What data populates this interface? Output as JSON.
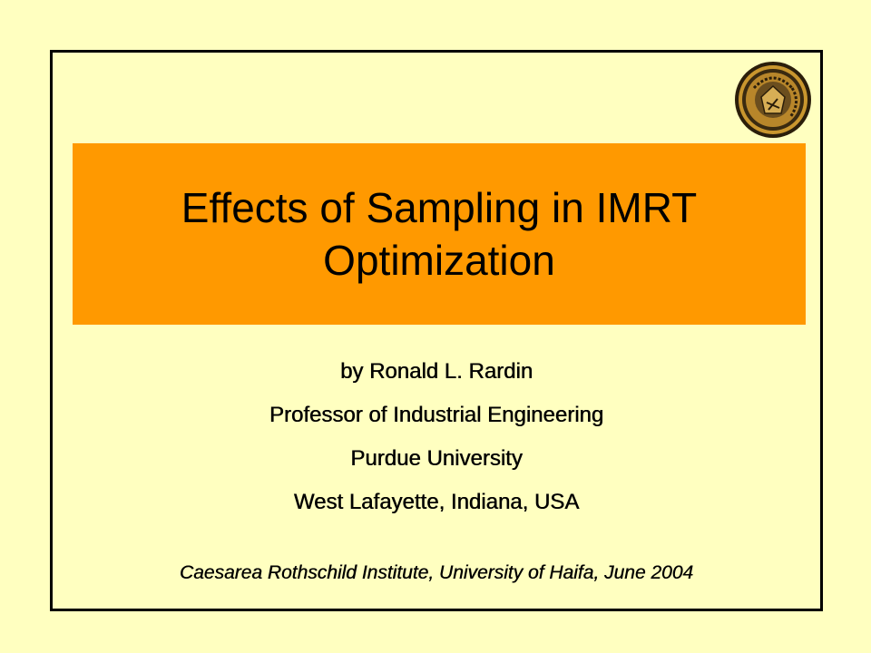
{
  "slide": {
    "title": "Effects of Sampling in IMRT Optimization",
    "author_lines": [
      "by Ronald L. Rardin",
      "Professor of Industrial Engineering",
      "Purdue University",
      "West Lafayette, Indiana, USA"
    ],
    "venue": "Caesarea Rothschild Institute, University of Haifa, June 2004"
  },
  "logo": {
    "icon": "purdue-university-seal-icon",
    "text": "Purdue University"
  },
  "colors": {
    "background": "#FFFFC0",
    "title_box": "#FF9900",
    "border": "#000000",
    "seal_gold": "#B8860B",
    "seal_dark": "#3A2A10"
  }
}
